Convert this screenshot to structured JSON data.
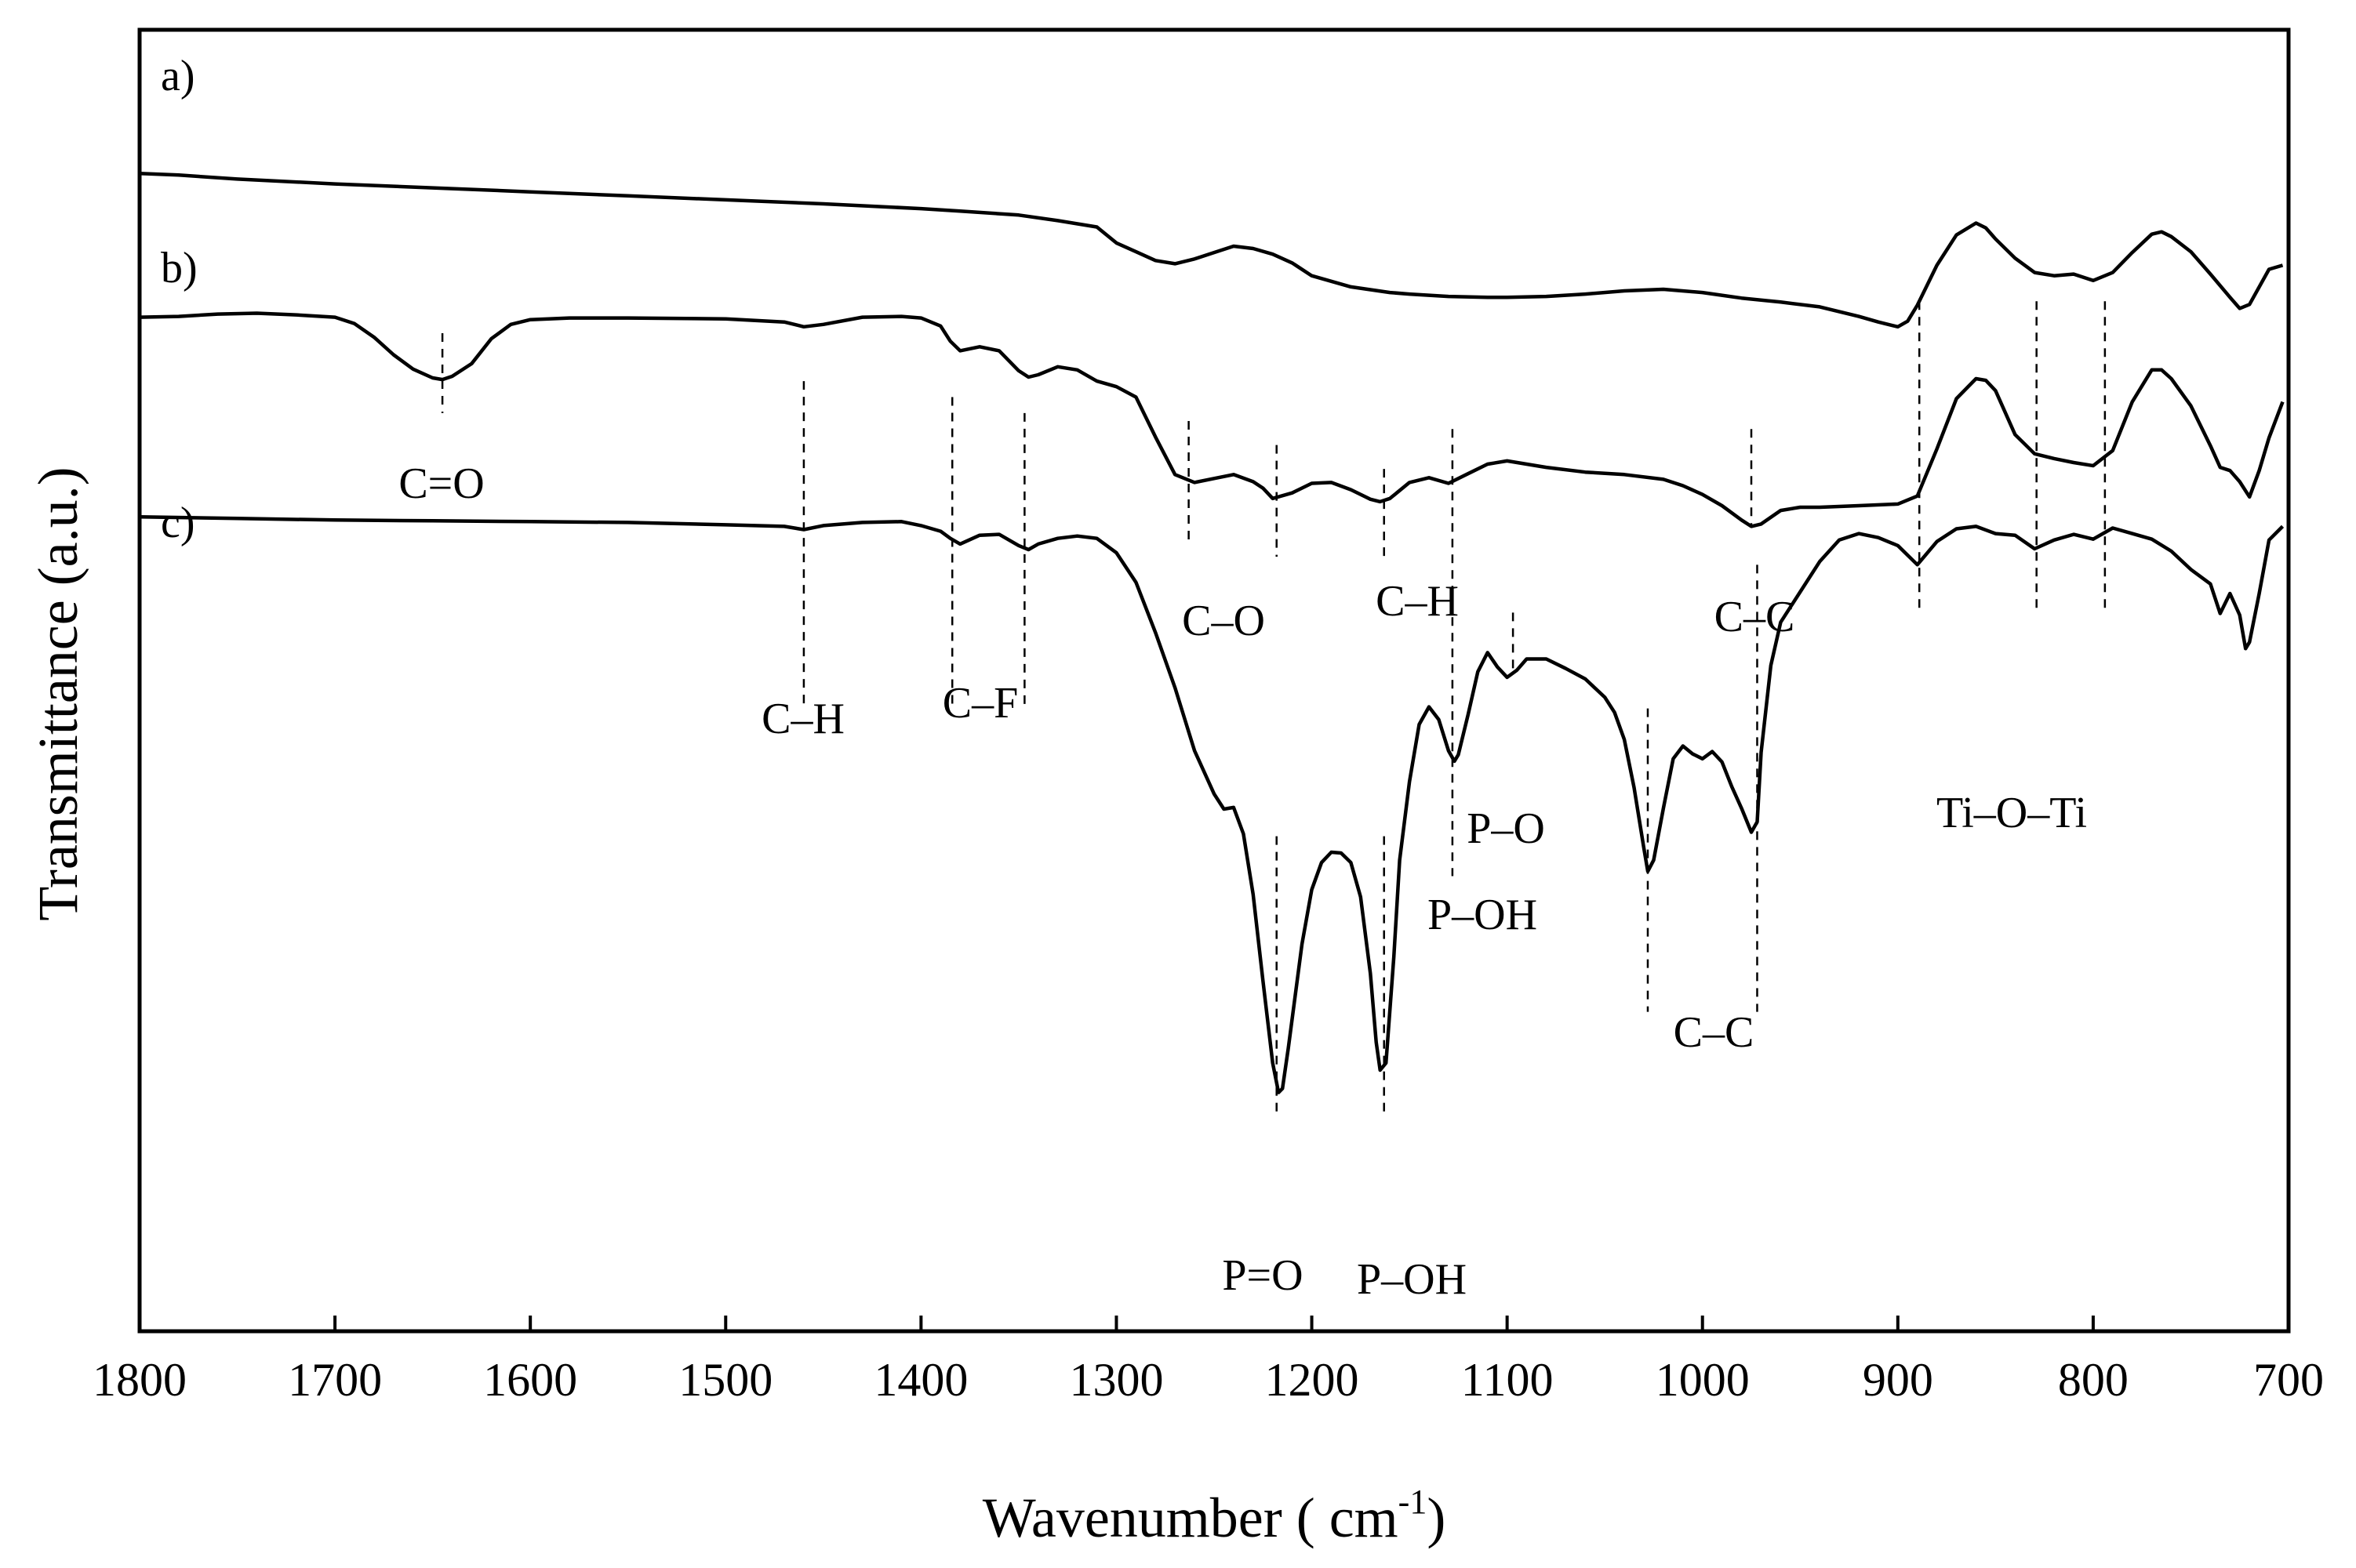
{
  "chart_data": {
    "type": "line",
    "title": "",
    "xlabel": "Wavenumber (cm-1)",
    "xlabel_main": "Wavenumber ( cm",
    "xlabel_sup": "-1",
    "xlabel_close": ")",
    "ylabel": "Transmittance (a.u.)",
    "xlim": [
      1800,
      700
    ],
    "x_reversed": true,
    "ylim": [
      -45,
      118
    ],
    "y_units": "relative transmittance, offset per trace (a.u.)",
    "grid": false,
    "x_ticks": [
      1800,
      1700,
      1600,
      1500,
      1400,
      1300,
      1200,
      1100,
      1000,
      900,
      800,
      700
    ],
    "series": [
      {
        "name": "a)",
        "x": [
          1800,
          1780,
          1750,
          1700,
          1650,
          1600,
          1550,
          1500,
          1450,
          1400,
          1380,
          1350,
          1330,
          1310,
          1300,
          1290,
          1280,
          1270,
          1260,
          1250,
          1240,
          1230,
          1220,
          1210,
          1200,
          1180,
          1160,
          1150,
          1130,
          1110,
          1100,
          1080,
          1060,
          1040,
          1020,
          1000,
          980,
          960,
          940,
          920,
          910,
          900,
          895,
          890,
          880,
          870,
          860,
          855,
          850,
          840,
          830,
          820,
          810,
          800,
          790,
          780,
          770,
          765,
          760,
          750,
          740,
          730,
          725,
          720,
          710,
          703
        ],
        "y": [
          100,
          99.8,
          99.3,
          98.7,
          98.2,
          97.7,
          97.2,
          96.7,
          96.2,
          95.6,
          95.3,
          94.8,
          94.1,
          93.3,
          91.3,
          90.2,
          89.1,
          88.7,
          89.3,
          90.1,
          90.9,
          90.6,
          89.9,
          88.8,
          87.2,
          85.8,
          85.1,
          84.9,
          84.6,
          84.5,
          84.5,
          84.6,
          84.9,
          85.3,
          85.5,
          85.1,
          84.4,
          83.9,
          83.3,
          82.1,
          81.4,
          80.8,
          81.5,
          83.5,
          88.5,
          92.3,
          93.8,
          93.2,
          91.8,
          89.4,
          87.6,
          87.2,
          87.4,
          86.6,
          87.6,
          90.1,
          92.4,
          92.7,
          92.1,
          90.2,
          87.4,
          84.5,
          83.1,
          83.6,
          88,
          88.5
        ]
      },
      {
        "name": "b)",
        "x": [
          1800,
          1780,
          1760,
          1740,
          1720,
          1700,
          1690,
          1680,
          1670,
          1660,
          1650,
          1645,
          1640,
          1630,
          1620,
          1610,
          1600,
          1580,
          1550,
          1500,
          1470,
          1460,
          1450,
          1430,
          1410,
          1400,
          1390,
          1385,
          1380,
          1370,
          1360,
          1350,
          1345,
          1340,
          1330,
          1320,
          1310,
          1300,
          1290,
          1280,
          1270,
          1260,
          1250,
          1240,
          1230,
          1225,
          1220,
          1210,
          1200,
          1190,
          1180,
          1170,
          1165,
          1160,
          1150,
          1140,
          1130,
          1120,
          1110,
          1100,
          1080,
          1060,
          1040,
          1020,
          1010,
          1000,
          990,
          980,
          975,
          970,
          960,
          950,
          940,
          920,
          900,
          890,
          880,
          870,
          860,
          855,
          850,
          840,
          830,
          820,
          810,
          800,
          790,
          780,
          770,
          765,
          760,
          750,
          740,
          735,
          730,
          725,
          720,
          715,
          710,
          703
        ],
        "y": [
          82,
          82.1,
          82.4,
          82.5,
          82.3,
          82,
          81.2,
          79.5,
          77.3,
          75.5,
          74.4,
          74.2,
          74.6,
          76.2,
          79.3,
          81.1,
          81.7,
          81.9,
          81.9,
          81.8,
          81.4,
          80.8,
          81.1,
          82,
          82.1,
          81.9,
          80.9,
          79,
          77.8,
          78.3,
          77.8,
          75.3,
          74.5,
          74.8,
          75.8,
          75.4,
          74,
          73.3,
          72,
          67,
          62.3,
          61.3,
          61.8,
          62.3,
          61.4,
          60.6,
          59.3,
          60,
          61.2,
          61.3,
          60.4,
          59.2,
          58.9,
          59.3,
          61.3,
          61.9,
          61.2,
          62.4,
          63.6,
          64,
          63.2,
          62.6,
          62.3,
          61.7,
          60.9,
          59.8,
          58.4,
          56.6,
          55.8,
          56.1,
          57.8,
          58.2,
          58.2,
          58.4,
          58.6,
          59.6,
          65.5,
          71.8,
          74.3,
          74.1,
          72.8,
          67.3,
          64.9,
          64.3,
          63.8,
          63.4,
          65.3,
          71.4,
          75.4,
          75.4,
          74.3,
          70.9,
          65.9,
          63.2,
          62.8,
          61.4,
          59.5,
          62.8,
          66.9,
          71.4
        ]
      },
      {
        "name": "c)",
        "x": [
          1800,
          1750,
          1700,
          1650,
          1600,
          1550,
          1500,
          1470,
          1460,
          1450,
          1430,
          1410,
          1400,
          1390,
          1385,
          1380,
          1370,
          1360,
          1350,
          1345,
          1340,
          1330,
          1320,
          1310,
          1300,
          1290,
          1280,
          1270,
          1260,
          1250,
          1245,
          1240,
          1235,
          1230,
          1225,
          1220,
          1217,
          1215,
          1212,
          1205,
          1200,
          1195,
          1190,
          1185,
          1180,
          1175,
          1170,
          1167,
          1165,
          1162,
          1158,
          1155,
          1150,
          1145,
          1140,
          1135,
          1130,
          1127,
          1125,
          1120,
          1115,
          1110,
          1105,
          1100,
          1095,
          1090,
          1080,
          1070,
          1060,
          1050,
          1045,
          1040,
          1035,
          1030,
          1028,
          1025,
          1020,
          1015,
          1010,
          1005,
          1000,
          995,
          990,
          985,
          980,
          975,
          972,
          970,
          965,
          960,
          950,
          940,
          930,
          920,
          910,
          900,
          890,
          880,
          870,
          860,
          850,
          840,
          830,
          820,
          810,
          800,
          790,
          780,
          770,
          760,
          750,
          740,
          735,
          730,
          725,
          722,
          720,
          715,
          710,
          703
        ],
        "y": [
          57,
          56.8,
          56.6,
          56.5,
          56.4,
          56.3,
          56,
          55.8,
          55.4,
          55.9,
          56.3,
          56.4,
          55.9,
          55.2,
          54.3,
          53.6,
          54.7,
          54.8,
          53.4,
          52.9,
          53.6,
          54.3,
          54.6,
          54.3,
          52.5,
          48.8,
          42.5,
          35.6,
          27.7,
          22.3,
          20.4,
          20.6,
          17.3,
          9.7,
          -1.1,
          -11.4,
          -15.1,
          -14.6,
          -9.5,
          3.5,
          10.3,
          13.7,
          15,
          14.9,
          13.7,
          9.4,
          -0.2,
          -8.8,
          -12.3,
          -11.4,
          1.9,
          14,
          23.8,
          31,
          33.2,
          31.6,
          27.7,
          26.4,
          27.2,
          32.2,
          37.6,
          40,
          38.2,
          36.9,
          37.8,
          39.2,
          39.2,
          38,
          36.7,
          34.4,
          32.5,
          29.1,
          23.1,
          15.5,
          12.6,
          14,
          20.5,
          26.7,
          28.3,
          27.3,
          26.7,
          27.6,
          26.3,
          23.2,
          20.5,
          17.5,
          18.8,
          27.5,
          38.4,
          43.8,
          47.6,
          51.4,
          54.1,
          54.9,
          54.4,
          53.4,
          51,
          53.9,
          55.5,
          55.8,
          54.9,
          54.7,
          53,
          54.1,
          54.8,
          54.2,
          55.6,
          54.9,
          54.2,
          52.7,
          50.4,
          48.6,
          44.9,
          47.4,
          44.7,
          40.5,
          41.3,
          47.4,
          54.1,
          55.8
        ]
      }
    ],
    "reference_lines": [
      {
        "x": 1645,
        "label": "C=O"
      },
      {
        "x": 1460,
        "label": "C–H"
      },
      {
        "x": 1384,
        "label": "C–F"
      },
      {
        "x": 1347,
        "label": "C–F"
      },
      {
        "x": 1263,
        "label": "C–O"
      },
      {
        "x": 1218,
        "label": "C–O"
      },
      {
        "x": 1218,
        "label": "P=O"
      },
      {
        "x": 1163,
        "label": "C–H"
      },
      {
        "x": 1163,
        "label": "P–OH"
      },
      {
        "x": 1128,
        "label": "C–H"
      },
      {
        "x": 1128,
        "label": "P–OH"
      },
      {
        "x": 1097,
        "label": "P–O"
      },
      {
        "x": 1028,
        "label": "C–C"
      },
      {
        "x": 975,
        "label": "C–C"
      },
      {
        "x": 972,
        "label": "C–C"
      },
      {
        "x": 889,
        "label": "Ti–O–Ti"
      },
      {
        "x": 829,
        "label": "Ti–O–Ti"
      },
      {
        "x": 794,
        "label": "Ti–O–Ti"
      }
    ],
    "annotations": [
      {
        "text": "C=O",
        "x": 1645
      },
      {
        "text": "C–H",
        "x": 1460
      },
      {
        "text": "C–F",
        "x": 1365
      },
      {
        "text": "C–O",
        "x": 1240
      },
      {
        "text": "C–H",
        "x": 1145
      },
      {
        "text": "C–C",
        "x": 973
      },
      {
        "text": "P–O",
        "x": 1097
      },
      {
        "text": "P–OH",
        "x": 1130
      },
      {
        "text": "C–C",
        "x": 1000
      },
      {
        "text": "Ti–O–Ti",
        "x": 842
      },
      {
        "text": "P=O",
        "x": 1218
      },
      {
        "text": "P–OH",
        "x": 1163
      }
    ]
  }
}
